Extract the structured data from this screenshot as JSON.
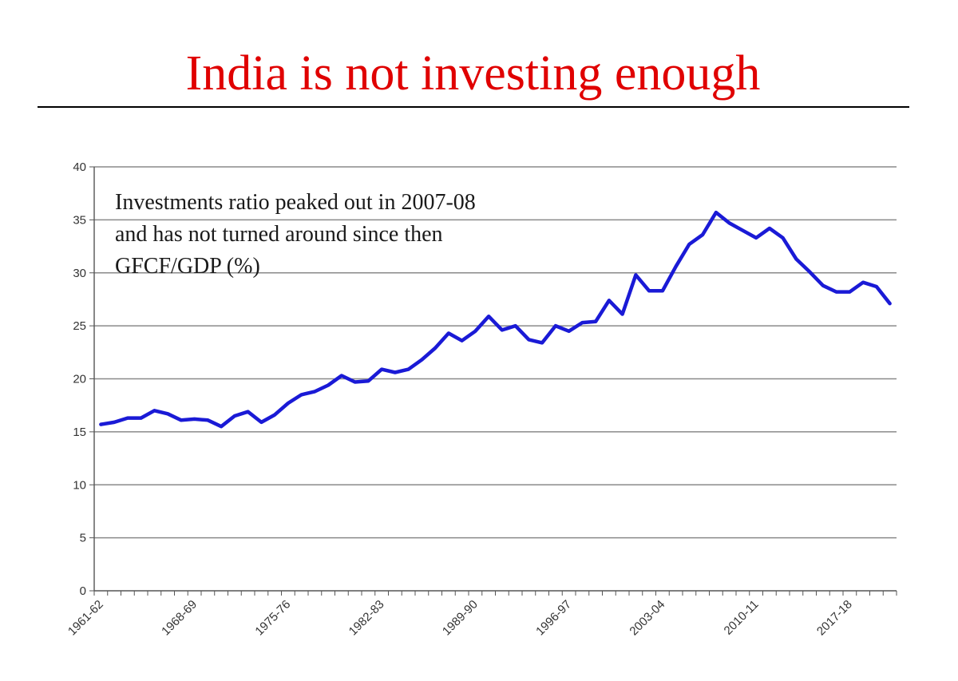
{
  "slide": {
    "title": "India is not investing enough",
    "title_color": "#e00000"
  },
  "chart_data": {
    "type": "line",
    "title": "",
    "xlabel": "",
    "ylabel": "",
    "ylim": [
      0,
      40
    ],
    "yticks": [
      0,
      5,
      10,
      15,
      20,
      25,
      30,
      35,
      40
    ],
    "grid": true,
    "annotation": [
      "Investments ratio peaked out in 2007-08",
      "and has not turned around since then",
      "GFCF/GDP (%)"
    ],
    "xtick_labels": [
      "1961-62",
      "1968-69",
      "1975-76",
      "1982-83",
      "1989-90",
      "1996-97",
      "2003-04",
      "2010-11",
      "2017-18"
    ],
    "x": [
      "1961-62",
      "1962-63",
      "1963-64",
      "1964-65",
      "1965-66",
      "1966-67",
      "1967-68",
      "1968-69",
      "1969-70",
      "1970-71",
      "1971-72",
      "1972-73",
      "1973-74",
      "1974-75",
      "1975-76",
      "1976-77",
      "1977-78",
      "1978-79",
      "1979-80",
      "1980-81",
      "1981-82",
      "1982-83",
      "1983-84",
      "1984-85",
      "1985-86",
      "1986-87",
      "1987-88",
      "1988-89",
      "1989-90",
      "1990-91",
      "1991-92",
      "1992-93",
      "1993-94",
      "1994-95",
      "1995-96",
      "1996-97",
      "1997-98",
      "1998-99",
      "1999-00",
      "2000-01",
      "2001-02",
      "2002-03",
      "2003-04",
      "2004-05",
      "2005-06",
      "2006-07",
      "2007-08",
      "2008-09",
      "2009-10",
      "2010-11",
      "2011-12",
      "2012-13",
      "2013-14",
      "2014-15",
      "2015-16",
      "2016-17",
      "2017-18",
      "2018-19",
      "2019-20",
      "2020-21"
    ],
    "series": [
      {
        "name": "",
        "color": "#1a1ad6",
        "values": [
          15.7,
          15.9,
          16.3,
          16.3,
          17.0,
          16.7,
          16.1,
          16.2,
          16.1,
          15.5,
          16.5,
          16.9,
          15.9,
          16.6,
          17.7,
          18.5,
          18.8,
          19.4,
          20.3,
          19.7,
          19.8,
          20.9,
          20.6,
          20.9,
          21.8,
          22.9,
          24.3,
          23.6,
          24.5,
          25.9,
          24.6,
          25.0,
          23.7,
          23.4,
          25.0,
          24.5,
          25.3,
          25.4,
          27.4,
          26.1,
          29.8,
          28.3,
          28.3,
          30.6,
          32.7,
          33.6,
          35.7,
          34.7,
          34.0,
          33.3,
          34.2,
          33.3,
          31.3,
          30.1,
          28.8,
          28.2,
          28.2,
          29.1,
          28.7,
          27.1
        ]
      }
    ]
  }
}
